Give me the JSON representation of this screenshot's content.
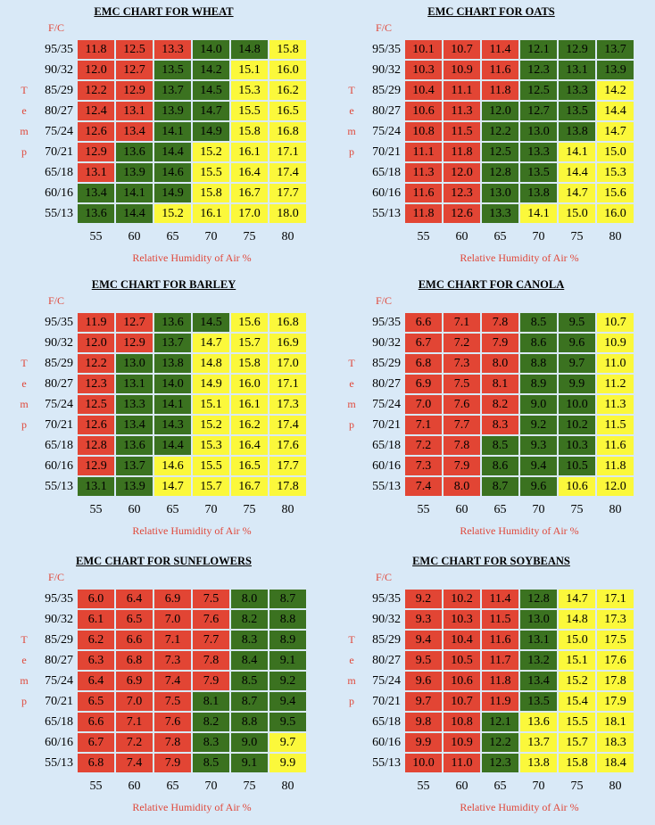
{
  "colors": {
    "red": "#e24534",
    "green": "#3b7220",
    "yellow": "#fbf83b",
    "label": "#e0483a",
    "background": "#d9e9f7"
  },
  "chart_data": [
    {
      "type": "heatmap",
      "title": "EMC CHART FOR WHEAT",
      "unit_label": "F/C",
      "ylabel": [
        "T",
        "e",
        "m",
        "p"
      ],
      "xlabel": "Relative Humidity of Air %",
      "rows": [
        "95/35",
        "90/32",
        "85/29",
        "80/27",
        "75/24",
        "70/21",
        "65/18",
        "60/16",
        "55/13"
      ],
      "columns": [
        "55",
        "60",
        "65",
        "70",
        "75",
        "80"
      ],
      "values": [
        [
          "11.8",
          "12.5",
          "13.3",
          "14.0",
          "14.8",
          "15.8"
        ],
        [
          "12.0",
          "12.7",
          "13.5",
          "14.2",
          "15.1",
          "16.0"
        ],
        [
          "12.2",
          "12.9",
          "13.7",
          "14.5",
          "15.3",
          "16.2"
        ],
        [
          "12.4",
          "13.1",
          "13.9",
          "14.7",
          "15.5",
          "16.5"
        ],
        [
          "12.6",
          "13.4",
          "14.1",
          "14.9",
          "15.8",
          "16.8"
        ],
        [
          "12.9",
          "13.6",
          "14.4",
          "15.2",
          "16.1",
          "17.1"
        ],
        [
          "13.1",
          "13.9",
          "14.6",
          "15.5",
          "16.4",
          "17.4"
        ],
        [
          "13.4",
          "14.1",
          "14.9",
          "15.8",
          "16.7",
          "17.7"
        ],
        [
          "13.6",
          "14.4",
          "15.2",
          "16.1",
          "17.0",
          "18.0"
        ]
      ],
      "colors": [
        [
          "r",
          "r",
          "r",
          "g",
          "g",
          "y"
        ],
        [
          "r",
          "r",
          "g",
          "g",
          "y",
          "y"
        ],
        [
          "r",
          "r",
          "g",
          "g",
          "y",
          "y"
        ],
        [
          "r",
          "r",
          "g",
          "g",
          "y",
          "y"
        ],
        [
          "r",
          "r",
          "g",
          "g",
          "y",
          "y"
        ],
        [
          "r",
          "g",
          "g",
          "y",
          "y",
          "y"
        ],
        [
          "r",
          "g",
          "g",
          "y",
          "y",
          "y"
        ],
        [
          "g",
          "g",
          "g",
          "y",
          "y",
          "y"
        ],
        [
          "g",
          "g",
          "y",
          "y",
          "y",
          "y"
        ]
      ]
    },
    {
      "type": "heatmap",
      "title": "EMC CHART FOR OATS",
      "unit_label": "F/C",
      "ylabel": [
        "T",
        "e",
        "m",
        "p"
      ],
      "xlabel": "Relative Humidity of Air %",
      "rows": [
        "95/35",
        "90/32",
        "85/29",
        "80/27",
        "75/24",
        "70/21",
        "65/18",
        "60/16",
        "55/13"
      ],
      "columns": [
        "55",
        "60",
        "65",
        "70",
        "75",
        "80"
      ],
      "values": [
        [
          "10.1",
          "10.7",
          "11.4",
          "12.1",
          "12.9",
          "13.7"
        ],
        [
          "10.3",
          "10.9",
          "11.6",
          "12.3",
          "13.1",
          "13.9"
        ],
        [
          "10.4",
          "11.1",
          "11.8",
          "12.5",
          "13.3",
          "14.2"
        ],
        [
          "10.6",
          "11.3",
          "12.0",
          "12.7",
          "13.5",
          "14.4"
        ],
        [
          "10.8",
          "11.5",
          "12.2",
          "13.0",
          "13.8",
          "14.7"
        ],
        [
          "11.1",
          "11.8",
          "12.5",
          "13.3",
          "14.1",
          "15.0"
        ],
        [
          "11.3",
          "12.0",
          "12.8",
          "13.5",
          "14.4",
          "15.3"
        ],
        [
          "11.6",
          "12.3",
          "13.0",
          "13.8",
          "14.7",
          "15.6"
        ],
        [
          "11.8",
          "12.6",
          "13.3",
          "14.1",
          "15.0",
          "16.0"
        ]
      ],
      "colors": [
        [
          "r",
          "r",
          "r",
          "g",
          "g",
          "g"
        ],
        [
          "r",
          "r",
          "r",
          "g",
          "g",
          "g"
        ],
        [
          "r",
          "r",
          "r",
          "g",
          "g",
          "y"
        ],
        [
          "r",
          "r",
          "g",
          "g",
          "g",
          "y"
        ],
        [
          "r",
          "r",
          "g",
          "g",
          "g",
          "y"
        ],
        [
          "r",
          "r",
          "g",
          "g",
          "y",
          "y"
        ],
        [
          "r",
          "r",
          "g",
          "g",
          "y",
          "y"
        ],
        [
          "r",
          "r",
          "g",
          "g",
          "y",
          "y"
        ],
        [
          "r",
          "r",
          "g",
          "y",
          "y",
          "y"
        ]
      ]
    },
    {
      "type": "heatmap",
      "title": "EMC CHART FOR BARLEY",
      "unit_label": "F/C",
      "ylabel": [
        "T",
        "e",
        "m",
        "p"
      ],
      "xlabel": "Relative Humidity of Air %",
      "rows": [
        "95/35",
        "90/32",
        "85/29",
        "80/27",
        "75/24",
        "70/21",
        "65/18",
        "60/16",
        "55/13"
      ],
      "columns": [
        "55",
        "60",
        "65",
        "70",
        "75",
        "80"
      ],
      "values": [
        [
          "11.9",
          "12.7",
          "13.6",
          "14.5",
          "15.6",
          "16.8"
        ],
        [
          "12.0",
          "12.9",
          "13.7",
          "14.7",
          "15.7",
          "16.9"
        ],
        [
          "12.2",
          "13.0",
          "13.8",
          "14.8",
          "15.8",
          "17.0"
        ],
        [
          "12.3",
          "13.1",
          "14.0",
          "14.9",
          "16.0",
          "17.1"
        ],
        [
          "12.5",
          "13.3",
          "14.1",
          "15.1",
          "16.1",
          "17.3"
        ],
        [
          "12.6",
          "13.4",
          "14.3",
          "15.2",
          "16.2",
          "17.4"
        ],
        [
          "12.8",
          "13.6",
          "14.4",
          "15.3",
          "16.4",
          "17.6"
        ],
        [
          "12.9",
          "13.7",
          "14.6",
          "15.5",
          "16.5",
          "17.7"
        ],
        [
          "13.1",
          "13.9",
          "14.7",
          "15.7",
          "16.7",
          "17.8"
        ]
      ],
      "colors": [
        [
          "r",
          "r",
          "g",
          "g",
          "y",
          "y"
        ],
        [
          "r",
          "r",
          "g",
          "y",
          "y",
          "y"
        ],
        [
          "r",
          "g",
          "g",
          "y",
          "y",
          "y"
        ],
        [
          "r",
          "g",
          "g",
          "y",
          "y",
          "y"
        ],
        [
          "r",
          "g",
          "g",
          "y",
          "y",
          "y"
        ],
        [
          "r",
          "g",
          "g",
          "y",
          "y",
          "y"
        ],
        [
          "r",
          "g",
          "g",
          "y",
          "y",
          "y"
        ],
        [
          "r",
          "g",
          "y",
          "y",
          "y",
          "y"
        ],
        [
          "g",
          "g",
          "y",
          "y",
          "y",
          "y"
        ]
      ]
    },
    {
      "type": "heatmap",
      "title": "EMC CHART FOR CANOLA",
      "unit_label": "F/C",
      "ylabel": [
        "T",
        "e",
        "m",
        "p"
      ],
      "xlabel": "Relative Humidity of Air %",
      "rows": [
        "95/35",
        "90/32",
        "85/29",
        "80/27",
        "75/24",
        "70/21",
        "65/18",
        "60/16",
        "55/13"
      ],
      "columns": [
        "55",
        "60",
        "65",
        "70",
        "75",
        "80"
      ],
      "values": [
        [
          "6.6",
          "7.1",
          "7.8",
          "8.5",
          "9.5",
          "10.7"
        ],
        [
          "6.7",
          "7.2",
          "7.9",
          "8.6",
          "9.6",
          "10.9"
        ],
        [
          "6.8",
          "7.3",
          "8.0",
          "8.8",
          "9.7",
          "11.0"
        ],
        [
          "6.9",
          "7.5",
          "8.1",
          "8.9",
          "9.9",
          "11.2"
        ],
        [
          "7.0",
          "7.6",
          "8.2",
          "9.0",
          "10.0",
          "11.3"
        ],
        [
          "7.1",
          "7.7",
          "8.3",
          "9.2",
          "10.2",
          "11.5"
        ],
        [
          "7.2",
          "7.8",
          "8.5",
          "9.3",
          "10.3",
          "11.6"
        ],
        [
          "7.3",
          "7.9",
          "8.6",
          "9.4",
          "10.5",
          "11.8"
        ],
        [
          "7.4",
          "8.0",
          "8.7",
          "9.6",
          "10.6",
          "12.0"
        ]
      ],
      "colors": [
        [
          "r",
          "r",
          "r",
          "g",
          "g",
          "y"
        ],
        [
          "r",
          "r",
          "r",
          "g",
          "g",
          "y"
        ],
        [
          "r",
          "r",
          "r",
          "g",
          "g",
          "y"
        ],
        [
          "r",
          "r",
          "r",
          "g",
          "g",
          "y"
        ],
        [
          "r",
          "r",
          "r",
          "g",
          "g",
          "y"
        ],
        [
          "r",
          "r",
          "r",
          "g",
          "g",
          "y"
        ],
        [
          "r",
          "r",
          "g",
          "g",
          "g",
          "y"
        ],
        [
          "r",
          "r",
          "g",
          "g",
          "g",
          "y"
        ],
        [
          "r",
          "r",
          "g",
          "g",
          "y",
          "y"
        ]
      ]
    },
    {
      "type": "heatmap",
      "title": "EMC CHART FOR SUNFLOWERS",
      "unit_label": "F/C",
      "ylabel": [
        "T",
        "e",
        "m",
        "p"
      ],
      "xlabel": "Relative Humidity of Air %",
      "rows": [
        "95/35",
        "90/32",
        "85/29",
        "80/27",
        "75/24",
        "70/21",
        "65/18",
        "60/16",
        "55/13"
      ],
      "columns": [
        "55",
        "60",
        "65",
        "70",
        "75",
        "80"
      ],
      "values": [
        [
          "6.0",
          "6.4",
          "6.9",
          "7.5",
          "8.0",
          "8.7"
        ],
        [
          "6.1",
          "6.5",
          "7.0",
          "7.6",
          "8.2",
          "8.8"
        ],
        [
          "6.2",
          "6.6",
          "7.1",
          "7.7",
          "8.3",
          "8.9"
        ],
        [
          "6.3",
          "6.8",
          "7.3",
          "7.8",
          "8.4",
          "9.1"
        ],
        [
          "6.4",
          "6.9",
          "7.4",
          "7.9",
          "8.5",
          "9.2"
        ],
        [
          "6.5",
          "7.0",
          "7.5",
          "8.1",
          "8.7",
          "9.4"
        ],
        [
          "6.6",
          "7.1",
          "7.6",
          "8.2",
          "8.8",
          "9.5"
        ],
        [
          "6.7",
          "7.2",
          "7.8",
          "8.3",
          "9.0",
          "9.7"
        ],
        [
          "6.8",
          "7.4",
          "7.9",
          "8.5",
          "9.1",
          "9.9"
        ]
      ],
      "colors": [
        [
          "r",
          "r",
          "r",
          "r",
          "g",
          "g"
        ],
        [
          "r",
          "r",
          "r",
          "r",
          "g",
          "g"
        ],
        [
          "r",
          "r",
          "r",
          "r",
          "g",
          "g"
        ],
        [
          "r",
          "r",
          "r",
          "r",
          "g",
          "g"
        ],
        [
          "r",
          "r",
          "r",
          "r",
          "g",
          "g"
        ],
        [
          "r",
          "r",
          "r",
          "g",
          "g",
          "g"
        ],
        [
          "r",
          "r",
          "r",
          "g",
          "g",
          "g"
        ],
        [
          "r",
          "r",
          "r",
          "g",
          "g",
          "y"
        ],
        [
          "r",
          "r",
          "r",
          "g",
          "g",
          "y"
        ]
      ]
    },
    {
      "type": "heatmap",
      "title": "EMC CHART FOR SOYBEANS",
      "unit_label": "F/C",
      "ylabel": [
        "T",
        "e",
        "m",
        "p"
      ],
      "xlabel": "Relative Humidity of Air %",
      "rows": [
        "95/35",
        "90/32",
        "85/29",
        "80/27",
        "75/24",
        "70/21",
        "65/18",
        "60/16",
        "55/13"
      ],
      "columns": [
        "55",
        "60",
        "65",
        "70",
        "75",
        "80"
      ],
      "values": [
        [
          "9.2",
          "10.2",
          "11.4",
          "12.8",
          "14.7",
          "17.1"
        ],
        [
          "9.3",
          "10.3",
          "11.5",
          "13.0",
          "14.8",
          "17.3"
        ],
        [
          "9.4",
          "10.4",
          "11.6",
          "13.1",
          "15.0",
          "17.5"
        ],
        [
          "9.5",
          "10.5",
          "11.7",
          "13.2",
          "15.1",
          "17.6"
        ],
        [
          "9.6",
          "10.6",
          "11.8",
          "13.4",
          "15.2",
          "17.8"
        ],
        [
          "9.7",
          "10.7",
          "11.9",
          "13.5",
          "15.4",
          "17.9"
        ],
        [
          "9.8",
          "10.8",
          "12.1",
          "13.6",
          "15.5",
          "18.1"
        ],
        [
          "9.9",
          "10.9",
          "12.2",
          "13.7",
          "15.7",
          "18.3"
        ],
        [
          "10.0",
          "11.0",
          "12.3",
          "13.8",
          "15.8",
          "18.4"
        ]
      ],
      "colors": [
        [
          "r",
          "r",
          "r",
          "g",
          "y",
          "y"
        ],
        [
          "r",
          "r",
          "r",
          "g",
          "y",
          "y"
        ],
        [
          "r",
          "r",
          "r",
          "g",
          "y",
          "y"
        ],
        [
          "r",
          "r",
          "r",
          "g",
          "y",
          "y"
        ],
        [
          "r",
          "r",
          "r",
          "g",
          "y",
          "y"
        ],
        [
          "r",
          "r",
          "r",
          "g",
          "y",
          "y"
        ],
        [
          "r",
          "r",
          "g",
          "y",
          "y",
          "y"
        ],
        [
          "r",
          "r",
          "g",
          "y",
          "y",
          "y"
        ],
        [
          "r",
          "r",
          "g",
          "y",
          "y",
          "y"
        ]
      ]
    }
  ]
}
